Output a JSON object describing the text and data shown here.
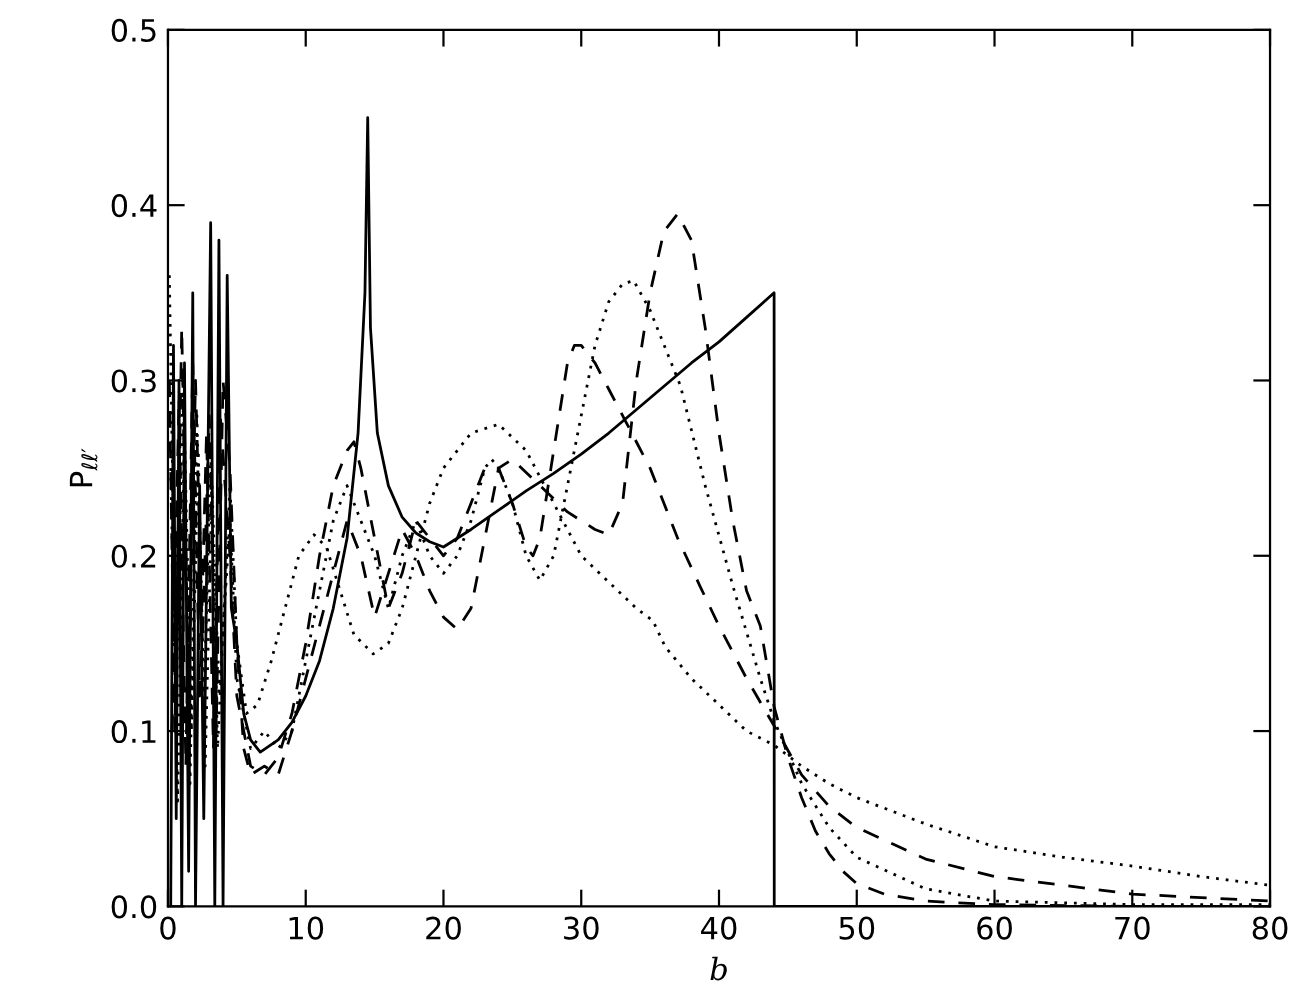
{
  "chart_data": {
    "type": "line",
    "xlabel": "b",
    "ylabel": "P$_{ℓℓ′}$",
    "xlim": [
      0,
      80
    ],
    "ylim": [
      0,
      0.5
    ],
    "xticks": [
      0,
      10,
      20,
      30,
      40,
      50,
      60,
      70,
      80
    ],
    "yticks": [
      {
        "value": 0,
        "label": "0.0"
      },
      {
        "value": 0.1,
        "label": "0.1"
      },
      {
        "value": 0.2,
        "label": "0.2"
      },
      {
        "value": 0.3,
        "label": "0.3"
      },
      {
        "value": 0.4,
        "label": "0.4"
      },
      {
        "value": 0.5,
        "label": "0.5"
      }
    ],
    "grid": false,
    "series": [
      {
        "color": "#000000",
        "line_style": "solid",
        "x": [
          0.2,
          0.4,
          0.6,
          0.8,
          1.0,
          1.2,
          1.5,
          1.8,
          2.0,
          2.3,
          2.6,
          3.1,
          3.4,
          3.7,
          4.0,
          4.3,
          4.6,
          5.0,
          5.5,
          6.0,
          6.7,
          8,
          9,
          10,
          11,
          12,
          13,
          13.8,
          14.3,
          14.5,
          14.7,
          15.2,
          16,
          17,
          18,
          19,
          20,
          22,
          24,
          26,
          28,
          30,
          32,
          35,
          38,
          40,
          42,
          44,
          44.01,
          80
        ],
        "values": [
          0.0,
          0.32,
          0.05,
          0.3,
          0.0,
          0.31,
          0.02,
          0.35,
          0.0,
          0.24,
          0.05,
          0.39,
          0.0,
          0.38,
          0.0,
          0.36,
          0.17,
          0.15,
          0.11,
          0.095,
          0.088,
          0.095,
          0.105,
          0.12,
          0.14,
          0.17,
          0.21,
          0.27,
          0.35,
          0.45,
          0.33,
          0.27,
          0.24,
          0.222,
          0.213,
          0.208,
          0.205,
          0.215,
          0.226,
          0.237,
          0.247,
          0.258,
          0.27,
          0.29,
          0.31,
          0.322,
          0.336,
          0.35,
          0.0,
          0.0
        ]
      },
      {
        "color": "#000000",
        "line_style": "dashed",
        "x": [
          0.1,
          0.5,
          1,
          1.5,
          2,
          2.5,
          3,
          3.5,
          4,
          4.5,
          5,
          5.5,
          6,
          7,
          8,
          9,
          10,
          11,
          12,
          13,
          14,
          15,
          16,
          17,
          18,
          19,
          20,
          21,
          22,
          23,
          24,
          25,
          27,
          29,
          31,
          32,
          33,
          34,
          35,
          36,
          37,
          38,
          39,
          40,
          41,
          42,
          43,
          44,
          45,
          46,
          47,
          48,
          49,
          50,
          52,
          55,
          60,
          70,
          80
        ],
        "values": [
          0.3,
          0.1,
          0.33,
          0.12,
          0.3,
          0.15,
          0.28,
          0.1,
          0.3,
          0.25,
          0.15,
          0.09,
          0.075,
          0.08,
          0.075,
          0.1,
          0.13,
          0.16,
          0.19,
          0.22,
          0.2,
          0.165,
          0.19,
          0.215,
          0.2,
          0.18,
          0.165,
          0.158,
          0.17,
          0.21,
          0.25,
          0.255,
          0.24,
          0.225,
          0.215,
          0.212,
          0.23,
          0.3,
          0.35,
          0.385,
          0.395,
          0.38,
          0.33,
          0.27,
          0.22,
          0.18,
          0.16,
          0.114,
          0.085,
          0.062,
          0.043,
          0.03,
          0.02,
          0.013,
          0.007,
          0.003,
          0.001,
          0.0,
          0.0
        ]
      },
      {
        "color": "#000000",
        "line_style": "dashed",
        "x": [
          0.3,
          0.8,
          1.3,
          1.8,
          2.3,
          2.8,
          3.3,
          3.8,
          4.5,
          5,
          6,
          7,
          8,
          9,
          10,
          11,
          12,
          13,
          13.5,
          14,
          15,
          16,
          17,
          18,
          19,
          20,
          21,
          22,
          23,
          24,
          25,
          26,
          26.5,
          27,
          28,
          29,
          29.5,
          30,
          31,
          32,
          33.2,
          35,
          37,
          38.6,
          40,
          42,
          44,
          46,
          48,
          50,
          55,
          60,
          70,
          80
        ],
        "values": [
          0.1,
          0.29,
          0.08,
          0.31,
          0.12,
          0.27,
          0.09,
          0.28,
          0.2,
          0.12,
          0.08,
          0.075,
          0.085,
          0.11,
          0.15,
          0.2,
          0.24,
          0.26,
          0.265,
          0.25,
          0.21,
          0.17,
          0.19,
          0.22,
          0.21,
          0.2,
          0.21,
          0.23,
          0.25,
          0.25,
          0.23,
          0.205,
          0.2,
          0.21,
          0.26,
          0.31,
          0.32,
          0.32,
          0.31,
          0.295,
          0.277,
          0.25,
          0.21,
          0.183,
          0.16,
          0.13,
          0.103,
          0.075,
          0.057,
          0.045,
          0.027,
          0.017,
          0.007,
          0.003
        ]
      },
      {
        "color": "#000000",
        "line_style": "dotted",
        "x": [
          0.2,
          0.7,
          1.2,
          1.7,
          2.2,
          2.7,
          3.2,
          3.7,
          4.5,
          5,
          6,
          7,
          8,
          9,
          10,
          11,
          12,
          13,
          14,
          15,
          16,
          17,
          18,
          19,
          20,
          21,
          22,
          23,
          23.5,
          24,
          25,
          26,
          27,
          28,
          29,
          30,
          31,
          32,
          33,
          33.8,
          35,
          37.2,
          39,
          41,
          43,
          44,
          46,
          48,
          50,
          55,
          60,
          70,
          80
        ],
        "values": [
          0.25,
          0.06,
          0.27,
          0.1,
          0.26,
          0.08,
          0.24,
          0.12,
          0.22,
          0.13,
          0.09,
          0.1,
          0.09,
          0.1,
          0.14,
          0.18,
          0.22,
          0.24,
          0.22,
          0.2,
          0.17,
          0.2,
          0.22,
          0.2,
          0.19,
          0.2,
          0.22,
          0.25,
          0.255,
          0.25,
          0.23,
          0.2,
          0.186,
          0.2,
          0.24,
          0.28,
          0.32,
          0.345,
          0.355,
          0.357,
          0.34,
          0.297,
          0.24,
          0.183,
          0.13,
          0.106,
          0.07,
          0.045,
          0.028,
          0.01,
          0.003,
          0.001,
          0.001
        ]
      },
      {
        "color": "#000000",
        "line_style": "dotted",
        "x": [
          0.1,
          0.6,
          1.1,
          1.6,
          2.1,
          2.6,
          3.1,
          3.6,
          4.5,
          5,
          5.7,
          6.5,
          7.5,
          8.5,
          9.5,
          10.6,
          11.5,
          12.5,
          13.5,
          14.9,
          16,
          17,
          18,
          19,
          20,
          21,
          22,
          24,
          26,
          28,
          30,
          32,
          34,
          35.2,
          36.1,
          38,
          40,
          42,
          44,
          46,
          48,
          50,
          55,
          60,
          65,
          70,
          75,
          80
        ],
        "values": [
          0.36,
          0.12,
          0.3,
          0.07,
          0.28,
          0.11,
          0.26,
          0.09,
          0.24,
          0.15,
          0.11,
          0.115,
          0.14,
          0.17,
          0.2,
          0.212,
          0.205,
          0.18,
          0.155,
          0.144,
          0.15,
          0.17,
          0.2,
          0.23,
          0.25,
          0.26,
          0.27,
          0.275,
          0.26,
          0.23,
          0.2,
          0.185,
          0.17,
          0.163,
          0.148,
          0.13,
          0.115,
          0.1,
          0.092,
          0.08,
          0.07,
          0.062,
          0.047,
          0.034,
          0.028,
          0.023,
          0.017,
          0.012
        ]
      }
    ]
  }
}
